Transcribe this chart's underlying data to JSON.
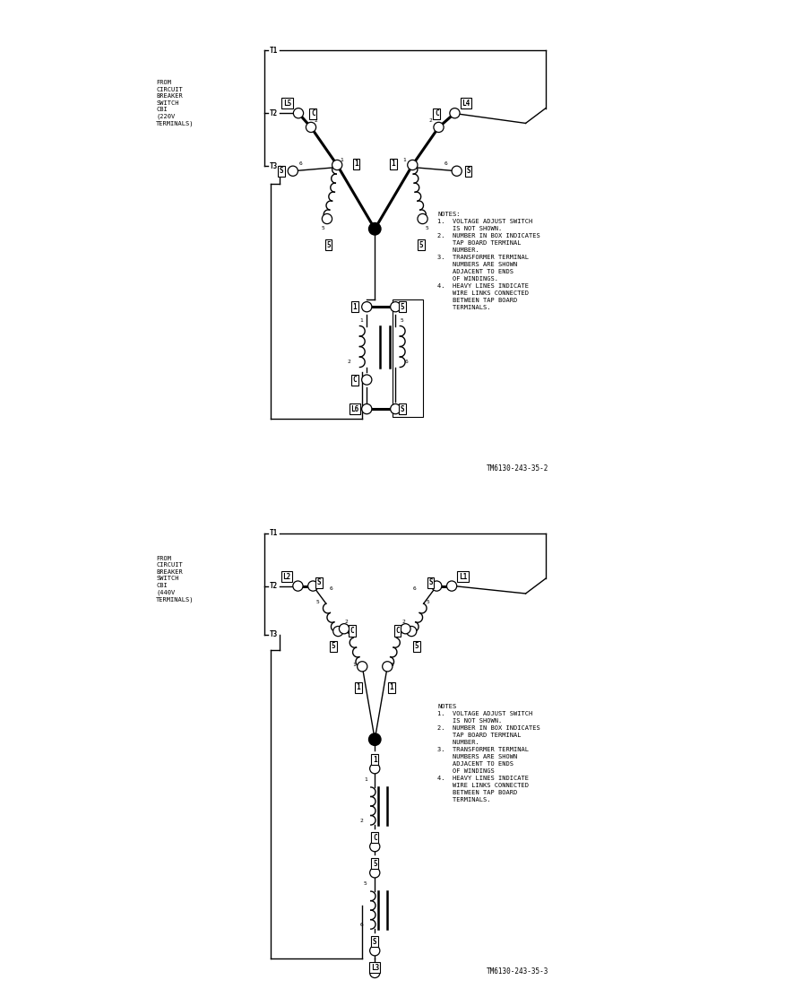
{
  "fig_width": 8.87,
  "fig_height": 11.22,
  "dpi": 100,
  "diagram1": {
    "left_label": "FROM\nCIRCUIT\nBREAKER\nSWITCH\nCBI\n(220V\nTERMINALS)",
    "ref": "TM6130-243-35-2",
    "notes": "NOTES:\n1.  VOLTAGE ADJUST SWITCH\n    IS NOT SHOWN.\n2.  NUMBER IN BOX INDICATES\n    TAP BOARD TERMINAL\n    NUMBER.\n3.  TRANSFORMER TERMINAL\n    NUMBERS ARE SHOWN\n    ADJACENT TO ENDS\n    OF WINDINGS.\n4.  HEAVY LINES INDICATE\n    WIRE LINKS CONNECTED\n    BETWEEN TAP BOARD\n    TERMINALS."
  },
  "diagram2": {
    "left_label": "FROM\nCIRCUIT\nBREAKER\nSWITCH\nCBI\n(440V\nTERMINALS)",
    "ref": "TM6130-243-35-3",
    "notes": "NOTES\n1.  VOLTAGE ADJUST SWITCH\n    IS NOT SHOWN.\n2.  NUMBER IN BOX INDICATES\n    TAP BOARD TERMINAL\n    NUMBER.\n3.  TRANSFORMER TERMINAL\n    NUMBERS ARE SHOWN\n    ADJACENT TO ENDS\n    OF WINDINGS\n4.  HEAVY LINES INDICATE\n    WIRE LINKS CONNECTED\n    BETWEEN TAP BOARD\n    TERMINALS."
  }
}
